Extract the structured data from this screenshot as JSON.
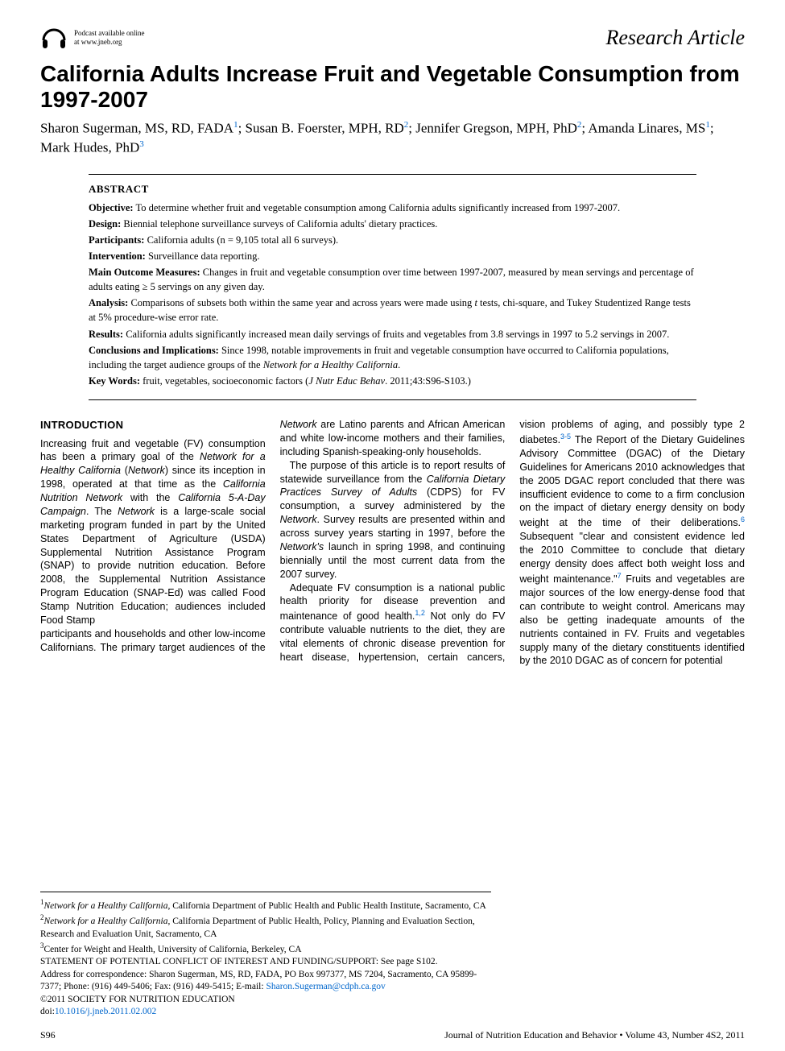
{
  "colors": {
    "text": "#000000",
    "link": "#0066cc",
    "background": "#ffffff",
    "rule": "#000000"
  },
  "typography": {
    "body_font": "Georgia, 'Times New Roman', serif",
    "sans_font": "Arial, Helvetica, sans-serif",
    "title_fontsize": 28,
    "article_type_fontsize": 26,
    "authors_fontsize": 17,
    "abstract_fontsize": 12.5,
    "body_fontsize": 12.5,
    "affil_fontsize": 11.5,
    "footer_fontsize": 12
  },
  "podcast": {
    "line1": "Podcast available online",
    "line2": "at www.jneb.org",
    "icon_name": "headphones-icon"
  },
  "article_type": "Research Article",
  "title": "California Adults Increase Fruit and Vegetable Consumption from 1997-2007",
  "authors_html": "Sharon Sugerman, MS, RD, FADA<sup class='sup-link'>1</sup>; Susan B. Foerster, MPH, RD<sup class='sup-link'>2</sup>; Jennifer Gregson, MPH, PhD<sup class='sup-link'>2</sup>; Amanda Linares, MS<sup class='sup-link'>1</sup>; Mark Hudes, PhD<sup class='sup-link'>3</sup>",
  "abstract": {
    "heading": "ABSTRACT",
    "items": [
      {
        "label": "Objective:",
        "text": "To determine whether fruit and vegetable consumption among California adults significantly increased from 1997-2007."
      },
      {
        "label": "Design:",
        "text": "Biennial telephone surveillance surveys of California adults' dietary practices."
      },
      {
        "label": "Participants:",
        "text": "California adults (n = 9,105 total all 6 surveys)."
      },
      {
        "label": "Intervention:",
        "text": "Surveillance data reporting."
      },
      {
        "label": "Main Outcome Measures:",
        "text": "Changes in fruit and vegetable consumption over time between 1997-2007, measured by mean servings and percentage of adults eating ≥ 5 servings on any given day."
      },
      {
        "label": "Analysis:",
        "text": "Comparisons of subsets both within the same year and across years were made using <em>t</em> tests, chi-square, and Tukey Studentized Range tests at 5% procedure-wise error rate."
      },
      {
        "label": "Results:",
        "text": "California adults significantly increased mean daily servings of fruits and vegetables from 3.8 servings in 1997 to 5.2 servings in 2007."
      },
      {
        "label": "Conclusions and Implications:",
        "text": "Since 1998, notable improvements in fruit and vegetable consumption have occurred to California populations, including the target audience groups of the <em>Network for a Healthy California</em>."
      },
      {
        "label": "Key Words:",
        "text": "fruit, vegetables, socioeconomic factors (<em>J Nutr Educ Behav</em>. 2011;43:S96-S103.)"
      }
    ]
  },
  "body": {
    "section_head": "INTRODUCTION",
    "para1": "Increasing fruit and vegetable (FV) consumption has been a primary goal of the <em>Network for a Healthy California</em> (<em>Network</em>) since its inception in 1998, operated at that time as the <em>California Nutrition Network</em> with the <em>California 5-A-Day Campaign</em>. The <em>Network</em> is a large-scale social marketing program funded in part by the United States Department of Agriculture (USDA) Supplemental Nutrition Assistance Program (SNAP) to provide nutrition education. Before 2008, the Supplemental Nutrition Assistance Program Education (SNAP-Ed) was called Food Stamp Nutrition Education; audiences included Food Stamp",
    "para2_cont": "participants and households and other low-income Californians. The primary target audiences of the <em>Network</em> are Latino parents and African American and white low-income mothers and their families, including Spanish-speaking-only households.",
    "para3": "The purpose of this article is to report results of statewide surveillance from the <em>California Dietary Practices Survey of Adults</em> (CDPS) for FV consumption, a survey administered by the <em>Network</em>. Survey results are presented within and across survey years starting in 1997, before the <em>Network's</em> launch in spring 1998, and continuing biennially until the most current data from the 2007 survey.",
    "para4": "Adequate FV consumption is a national public health priority for disease prevention and maintenance of good health.<sup class='ref-link'>1,2</sup> Not only do FV contribute valuable nutrients to the diet, they are vital elements of chronic disease prevention for heart disease, hypertension, certain cancers, vision problems of aging, and possibly type 2 diabetes.<sup class='ref-link'>3-5</sup> The Report of the Dietary Guidelines Advisory Committee (DGAC) of the Dietary Guidelines for Americans 2010 acknowledges that the 2005 DGAC report concluded that there was insufficient evidence to come to a firm conclusion on the impact of dietary energy density on body weight at the time of their deliberations.<sup class='ref-link'>6</sup> Subsequent \"clear and consistent evidence led the 2010 Committee to conclude that dietary energy density does affect both weight loss and weight maintenance.\"<sup class='ref-link'>7</sup> Fruits and vegetables are major sources of the low energy-dense food that can contribute to weight control. Americans may also be getting inadequate amounts of the nutrients contained in FV. Fruits and vegetables supply many of the dietary constituents identified by the 2010 DGAC as of concern for potential"
  },
  "affiliations": {
    "a1": "<sup>1</sup><em>Network for a Healthy California</em>, California Department of Public Health and Public Health Institute, Sacramento, CA",
    "a2": "<sup>2</sup><em>Network for a Healthy California</em>, California Department of Public Health, Policy, Planning and Evaluation Section, Research and Evaluation Unit, Sacramento, CA",
    "a3": "<sup>3</sup>Center for Weight and Health, University of California, Berkeley, CA",
    "coi": "STATEMENT OF POTENTIAL CONFLICT OF INTEREST AND FUNDING/SUPPORT: See page S102.",
    "corr_prefix": "Address for correspondence: Sharon Sugerman, MS, RD, FADA, PO Box 997377, MS 7204, Sacramento, CA 95899-7377; Phone: (916) 449-5406; Fax: (916) 449-5415; E-mail: ",
    "email": "Sharon.Sugerman@cdph.ca.gov",
    "copyright": "©2011 SOCIETY FOR NUTRITION EDUCATION",
    "doi_prefix": "doi:",
    "doi": "10.1016/j.jneb.2011.02.002"
  },
  "footer": {
    "left": "S96",
    "right": "Journal of Nutrition Education and Behavior • Volume 43, Number 4S2, 2011"
  }
}
